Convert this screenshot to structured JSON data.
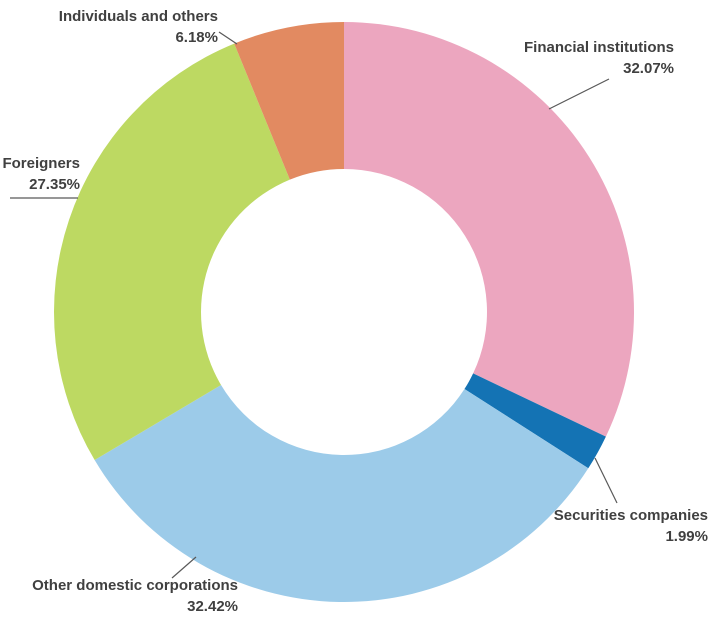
{
  "chart_data": {
    "type": "pie",
    "subtype": "donut",
    "title": "",
    "legend_position": "none",
    "direction": "clockwise",
    "start_angle_deg": 0,
    "donut_hole_ratio": 0.49,
    "categories": [
      "Financial institutions",
      "Securities companies",
      "Other domestic corporations",
      "Foreigners",
      "Individuals and others"
    ],
    "values": [
      32.07,
      1.99,
      32.42,
      27.35,
      6.18
    ],
    "percent_labels": [
      "32.07%",
      "1.99%",
      "32.42%",
      "27.35%",
      "6.18%"
    ],
    "colors": [
      "#ECA6BF",
      "#1473B4",
      "#9CCBE9",
      "#BDD962",
      "#E28A61"
    ],
    "labels_color": "#404040",
    "leader_line_color": "#595959",
    "background_color": "#FFFFFF"
  }
}
